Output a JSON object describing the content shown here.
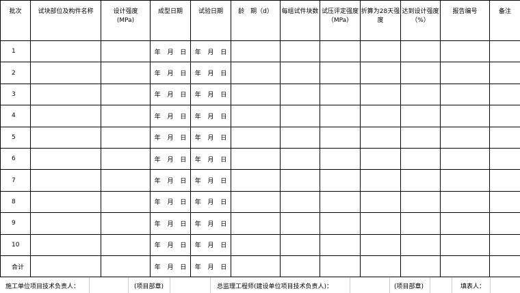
{
  "table": {
    "headers": [
      "批次",
      "试块部位及构件名称",
      "设计强度\n(MPa)",
      "成型日期",
      "试验日期",
      "龄　期（d）",
      "每组试件块数",
      "试压评定强度（MPa）",
      "折算为28天强度",
      "达到设计强度（%）",
      "报告编号",
      "备注"
    ],
    "rows": [
      [
        "1",
        "年  月  日",
        "年  月  日"
      ],
      [
        "2",
        "年  月  日",
        "年  月  日"
      ],
      [
        "3",
        "年  月  日",
        "年  月  日"
      ],
      [
        "4",
        "年  月  日",
        "年  月  日"
      ],
      [
        "5",
        "年  月  日",
        "年  月  日"
      ],
      [
        "6",
        "年  月  日",
        "年  月  日"
      ],
      [
        "7",
        "年  月  日",
        "年  月  日"
      ],
      [
        "8",
        "年  月  日",
        "年  月  日"
      ],
      [
        "9",
        "年  月  日",
        "年  月  日"
      ],
      [
        "10",
        "年  月  日",
        "年  月  日"
      ],
      [
        "合计",
        "年  月  日",
        "年  月  日"
      ]
    ]
  },
  "footer": [
    "施工单位项目技术负责人：",
    "(项目部章)",
    "总监理工程师(建设单位项目技术负责人)：",
    "(项目部章)",
    "填表人："
  ]
}
